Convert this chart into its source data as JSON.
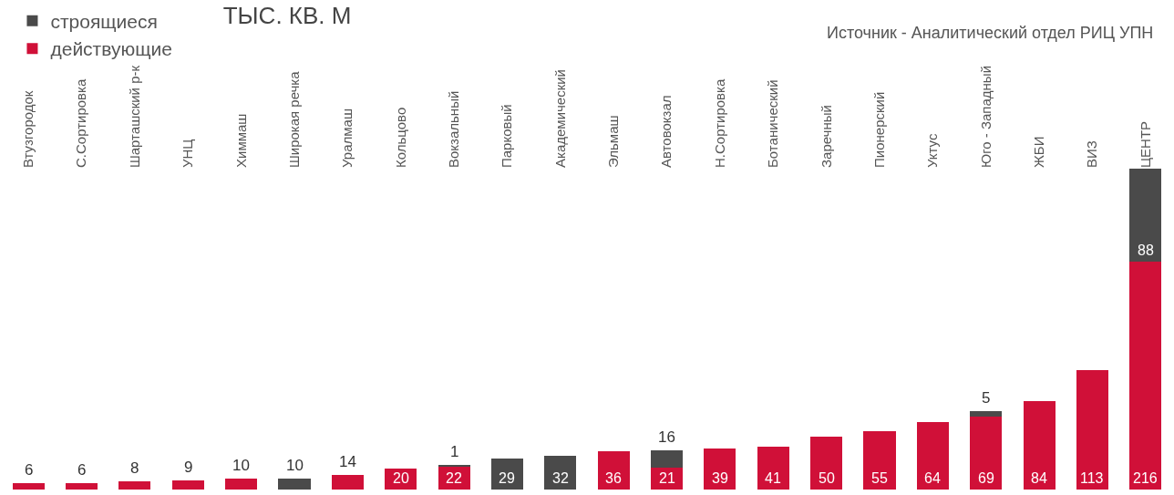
{
  "chart_data": {
    "type": "bar",
    "title": "ТЫС. КВ. М",
    "annotations": [
      "Источник - Аналитический отдел РИЦ УПН"
    ],
    "categories": [
      "Втузгородок",
      "С.Сортировка",
      "Шарташский р-к",
      "УНЦ",
      "Химмаш",
      "Широкая речка",
      "Уралмаш",
      "Кольцово",
      "Вокзальный",
      "Парковый",
      "Академический",
      "Эльмаш",
      "Автовокзал",
      "Н.Сортировка",
      "Ботанический",
      "Заречный",
      "Пионерский",
      "Уктус",
      "Юго - Западный",
      "ЖБИ",
      "ВИЗ",
      "ЦЕНТР"
    ],
    "series": [
      {
        "name": "действующие",
        "color": "#d01038",
        "values": [
          6,
          6,
          8,
          9,
          10,
          null,
          14,
          20,
          22,
          null,
          null,
          36,
          21,
          39,
          41,
          50,
          55,
          64,
          69,
          84,
          113,
          216
        ]
      },
      {
        "name": "строящиеся",
        "color": "#4a4a4a",
        "values": [
          null,
          null,
          null,
          null,
          null,
          10,
          null,
          null,
          1,
          29,
          32,
          null,
          16,
          null,
          null,
          null,
          null,
          null,
          5,
          null,
          null,
          88
        ]
      }
    ],
    "stacked": true,
    "data_labels": true,
    "legend": "top left",
    "tick_labels": "x"
  }
}
